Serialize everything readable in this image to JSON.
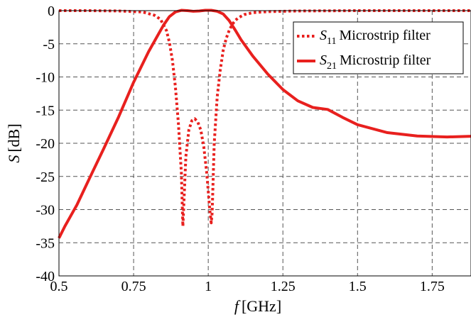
{
  "chart_data": {
    "type": "line",
    "xlabel_symbol": "f",
    "xlabel_unit": "[GHz]",
    "ylabel_symbol": "S",
    "ylabel_unit": "[dB]",
    "xlim": [
      0.5,
      1.88
    ],
    "ylim": [
      -40,
      0
    ],
    "xticks": [
      0.5,
      0.75,
      1,
      1.25,
      1.5,
      1.75
    ],
    "xtick_labels": [
      "0.5",
      "0.75",
      "1",
      "1.25",
      "1.5",
      "1.75"
    ],
    "yticks": [
      0,
      -5,
      -10,
      -15,
      -20,
      -25,
      -30,
      -35,
      -40
    ],
    "ytick_labels": [
      "0",
      "-5",
      "-10",
      "-15",
      "-20",
      "-25",
      "-30",
      "-35",
      "-40"
    ],
    "grid": true,
    "legend_position": "top-right",
    "colors": {
      "series": "#e8201e",
      "grid": "#555555",
      "axes": "#000000"
    },
    "series": [
      {
        "name_symbol": "S",
        "name_subscript": "11",
        "name_suffix": "Microstrip filter",
        "style": "dotted",
        "x": [
          0.5,
          0.6,
          0.7,
          0.78,
          0.82,
          0.84,
          0.86,
          0.87,
          0.88,
          0.89,
          0.9,
          0.91,
          0.915,
          0.925,
          0.935,
          0.945,
          0.955,
          0.965,
          0.975,
          0.985,
          0.995,
          1.005,
          1.01,
          1.013,
          1.02,
          1.03,
          1.04,
          1.05,
          1.06,
          1.07,
          1.08,
          1.09,
          1.1,
          1.12,
          1.15,
          1.2,
          1.3,
          1.5,
          1.7,
          1.88
        ],
        "y": [
          0,
          0,
          -0.05,
          -0.2,
          -0.7,
          -1.3,
          -3,
          -4.8,
          -7.5,
          -11.5,
          -17,
          -24.5,
          -32.5,
          -22,
          -18,
          -16.6,
          -16.3,
          -16.8,
          -18,
          -20.5,
          -24.5,
          -30,
          -32,
          -30.5,
          -20,
          -13,
          -9,
          -6,
          -4.2,
          -3,
          -2.1,
          -1.5,
          -1.1,
          -0.6,
          -0.3,
          -0.15,
          -0.05,
          0,
          0,
          0
        ]
      },
      {
        "name_symbol": "S",
        "name_subscript": "21",
        "name_suffix": "Microstrip filter",
        "style": "solid",
        "x": [
          0.5,
          0.52,
          0.55,
          0.56,
          0.6,
          0.65,
          0.7,
          0.75,
          0.8,
          0.83,
          0.85,
          0.87,
          0.89,
          0.91,
          0.93,
          0.95,
          0.97,
          0.99,
          1.01,
          1.03,
          1.05,
          1.07,
          1.09,
          1.11,
          1.15,
          1.2,
          1.25,
          1.3,
          1.35,
          1.4,
          1.45,
          1.5,
          1.6,
          1.7,
          1.8,
          1.88
        ],
        "y": [
          -34.3,
          -32.5,
          -30.1,
          -29.3,
          -25.5,
          -20.8,
          -16,
          -10.8,
          -6.2,
          -3.8,
          -2.2,
          -0.9,
          -0.2,
          0.05,
          0,
          -0.1,
          -0.05,
          0.05,
          0.05,
          -0.1,
          -0.5,
          -1.5,
          -2.9,
          -4.4,
          -6.9,
          -9.6,
          -11.9,
          -13.6,
          -14.6,
          -14.9,
          -16.1,
          -17.2,
          -18.4,
          -18.9,
          -19.05,
          -18.95
        ]
      }
    ]
  }
}
